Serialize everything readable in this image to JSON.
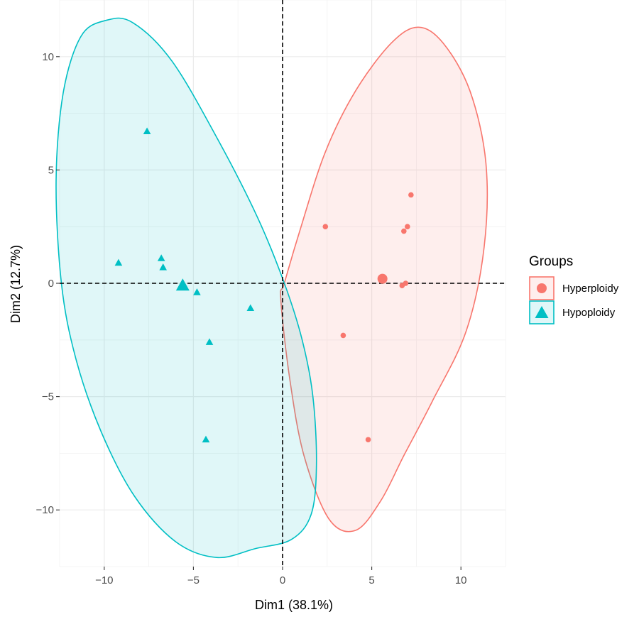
{
  "chart_data": {
    "type": "scatter",
    "xlabel": "Dim1 (38.1%)",
    "ylabel": "Dim2 (12.7%)",
    "xlim": [
      -12.5,
      12.5
    ],
    "ylim": [
      -12.5,
      12.5
    ],
    "x_ticks": [
      -10,
      -5,
      0,
      5,
      10
    ],
    "y_ticks": [
      -10,
      -5,
      0,
      5,
      10
    ],
    "x_tick_labels": [
      "−10",
      "−5",
      "0",
      "5",
      "10"
    ],
    "y_tick_labels": [
      "−10",
      "−5",
      "0",
      "5",
      "10"
    ],
    "grid": true,
    "reference_lines": {
      "x": 0,
      "y": 0,
      "style": "dashed"
    },
    "legend": {
      "title": "Groups",
      "position": "right",
      "entries": [
        "Hyperploidy",
        "Hypoploidy"
      ]
    },
    "series": [
      {
        "name": "Hyperploidy",
        "color": "#F8766D",
        "marker": "circle",
        "points": [
          {
            "x": 2.4,
            "y": 2.5
          },
          {
            "x": 7.2,
            "y": 3.9
          },
          {
            "x": 7.0,
            "y": 2.5
          },
          {
            "x": 6.8,
            "y": 2.3
          },
          {
            "x": 6.9,
            "y": 0.0
          },
          {
            "x": 6.7,
            "y": -0.1
          },
          {
            "x": 3.4,
            "y": -2.3
          },
          {
            "x": 4.8,
            "y": -6.9
          }
        ],
        "centroid": {
          "x": 5.6,
          "y": 0.2
        },
        "ellipse": [
          [
            -0.1,
            -0.7
          ],
          [
            0.4,
            -4.2
          ],
          [
            1.2,
            -7.6
          ],
          [
            2.6,
            -10.4
          ],
          [
            4.1,
            -10.9
          ],
          [
            5.5,
            -9.6
          ],
          [
            6.8,
            -7.6
          ],
          [
            8.4,
            -5.2
          ],
          [
            10.3,
            -2.1
          ],
          [
            11.3,
            1.6
          ],
          [
            11.4,
            5.3
          ],
          [
            10.5,
            8.5
          ],
          [
            9.0,
            10.6
          ],
          [
            7.6,
            11.3
          ],
          [
            6.1,
            10.6
          ],
          [
            4.1,
            8.5
          ],
          [
            2.4,
            5.8
          ],
          [
            1.0,
            2.4
          ],
          [
            0.1,
            0.0
          ]
        ]
      },
      {
        "name": "Hypoploidy",
        "color": "#00BFC4",
        "marker": "triangle",
        "points": [
          {
            "x": -7.6,
            "y": 6.7
          },
          {
            "x": -9.2,
            "y": 0.9
          },
          {
            "x": -6.8,
            "y": 1.1
          },
          {
            "x": -6.7,
            "y": 0.7
          },
          {
            "x": -4.8,
            "y": -0.4
          },
          {
            "x": -1.8,
            "y": -1.1
          },
          {
            "x": -4.1,
            "y": -2.6
          },
          {
            "x": -4.3,
            "y": -6.9
          }
        ],
        "centroid": {
          "x": -5.6,
          "y": -0.1
        },
        "ellipse": [
          [
            -9.9,
            11.6
          ],
          [
            -11.3,
            10.9
          ],
          [
            -12.3,
            8.4
          ],
          [
            -12.7,
            4.5
          ],
          [
            -12.4,
            0.0
          ],
          [
            -11.6,
            -3.3
          ],
          [
            -10.2,
            -6.5
          ],
          [
            -8.3,
            -9.4
          ],
          [
            -6.0,
            -11.4
          ],
          [
            -3.7,
            -12.1
          ],
          [
            -1.5,
            -11.7
          ],
          [
            0.5,
            -11.3
          ],
          [
            1.6,
            -10.2
          ],
          [
            1.9,
            -8.0
          ],
          [
            1.7,
            -5.0
          ],
          [
            1.1,
            -2.5
          ],
          [
            0.1,
            0.0
          ],
          [
            -1.4,
            2.9
          ],
          [
            -3.6,
            6.3
          ],
          [
            -6.2,
            9.8
          ],
          [
            -8.4,
            11.5
          ]
        ]
      }
    ]
  }
}
